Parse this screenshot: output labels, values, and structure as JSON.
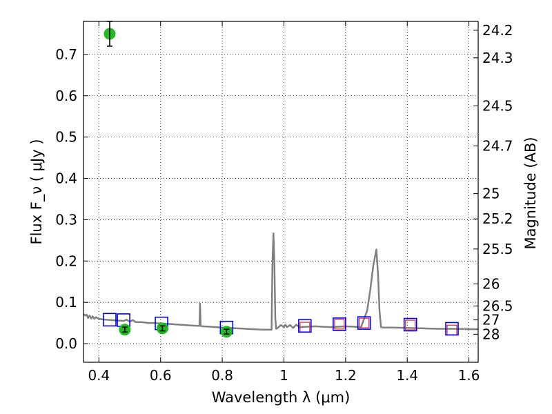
{
  "chart_data": {
    "type": "scatter",
    "xlabel": "Wavelength  λ (μm)",
    "ylabel": "Flux  F_ν  ( μJy )",
    "y2label": "Magnitude (AB)",
    "xlim": [
      0.35,
      1.63
    ],
    "ylim": [
      -0.045,
      0.78
    ],
    "grid": true,
    "x_ticks": [
      0.4,
      0.6,
      0.8,
      1.0,
      1.2,
      1.4,
      1.6
    ],
    "x_tick_labels": [
      "0.4",
      "0.6",
      "0.8",
      "1",
      "1.2",
      "1.4",
      "1.6"
    ],
    "y_ticks": [
      0.0,
      0.1,
      0.2,
      0.3,
      0.4,
      0.5,
      0.6,
      0.7
    ],
    "y_tick_labels": [
      "0.0",
      "0.1",
      "0.2",
      "0.3",
      "0.4",
      "0.5",
      "0.6",
      "0.7"
    ],
    "y2_tick_labels": [
      "24.2",
      "24.3",
      "24.5",
      "24.7",
      "25",
      "25.2",
      "25.5",
      "26",
      "26.5",
      "27",
      "28"
    ],
    "y2_tick_flux": [
      0.7586,
      0.6918,
      0.5754,
      0.4786,
      0.3631,
      0.302,
      0.2291,
      0.1445,
      0.0912,
      0.0575,
      0.0229
    ],
    "colors": {
      "model": "#808080",
      "observed": "#22bb22",
      "model_box": "#0000ee",
      "predicted_box": "#dd4444"
    },
    "model_spectrum": {
      "x": [
        0.35,
        0.355,
        0.36,
        0.365,
        0.37,
        0.375,
        0.38,
        0.385,
        0.39,
        0.4,
        0.42,
        0.44,
        0.46,
        0.48,
        0.49,
        0.5,
        0.51,
        0.52,
        0.54,
        0.56,
        0.58,
        0.6,
        0.62,
        0.64,
        0.66,
        0.68,
        0.7,
        0.72,
        0.726,
        0.728,
        0.73,
        0.735,
        0.76,
        0.8,
        0.85,
        0.9,
        0.93,
        0.96,
        0.963,
        0.966,
        0.969,
        0.972,
        0.975,
        0.98,
        0.99,
        1.0,
        1.005,
        1.01,
        1.02,
        1.03,
        1.04,
        1.05,
        1.1,
        1.15,
        1.2,
        1.25,
        1.27,
        1.28,
        1.29,
        1.3,
        1.305,
        1.31,
        1.315,
        1.32,
        1.35,
        1.4,
        1.45,
        1.5,
        1.55,
        1.6,
        1.63
      ],
      "y": [
        0.072,
        0.068,
        0.07,
        0.062,
        0.068,
        0.061,
        0.066,
        0.06,
        0.064,
        0.06,
        0.058,
        0.057,
        0.056,
        0.055,
        0.058,
        0.053,
        0.057,
        0.052,
        0.052,
        0.05,
        0.05,
        0.049,
        0.048,
        0.047,
        0.046,
        0.045,
        0.044,
        0.043,
        0.043,
        0.097,
        0.043,
        0.042,
        0.041,
        0.039,
        0.037,
        0.035,
        0.034,
        0.034,
        0.2,
        0.267,
        0.2,
        0.06,
        0.036,
        0.038,
        0.045,
        0.04,
        0.046,
        0.04,
        0.045,
        0.038,
        0.046,
        0.04,
        0.042,
        0.04,
        0.042,
        0.04,
        0.08,
        0.13,
        0.19,
        0.228,
        0.17,
        0.08,
        0.04,
        0.039,
        0.039,
        0.038,
        0.037,
        0.036,
        0.036,
        0.035,
        0.035
      ]
    },
    "observed": {
      "x": [
        0.435,
        0.484,
        0.606,
        0.814
      ],
      "y": [
        0.75,
        0.034,
        0.037,
        0.029
      ],
      "yerr": [
        0.03,
        0.006,
        0.006,
        0.006
      ]
    },
    "model_boxes": {
      "x": [
        0.435,
        0.48,
        0.603,
        0.814,
        1.068,
        1.18,
        1.26,
        1.41,
        1.545
      ],
      "y": [
        0.058,
        0.057,
        0.049,
        0.039,
        0.043,
        0.047,
        0.05,
        0.046,
        0.036
      ]
    },
    "predicted_boxes": {
      "x": [
        1.068,
        1.18,
        1.26,
        1.41,
        1.545
      ],
      "y": [
        0.04,
        0.047,
        0.05,
        0.045,
        0.033
      ]
    }
  }
}
